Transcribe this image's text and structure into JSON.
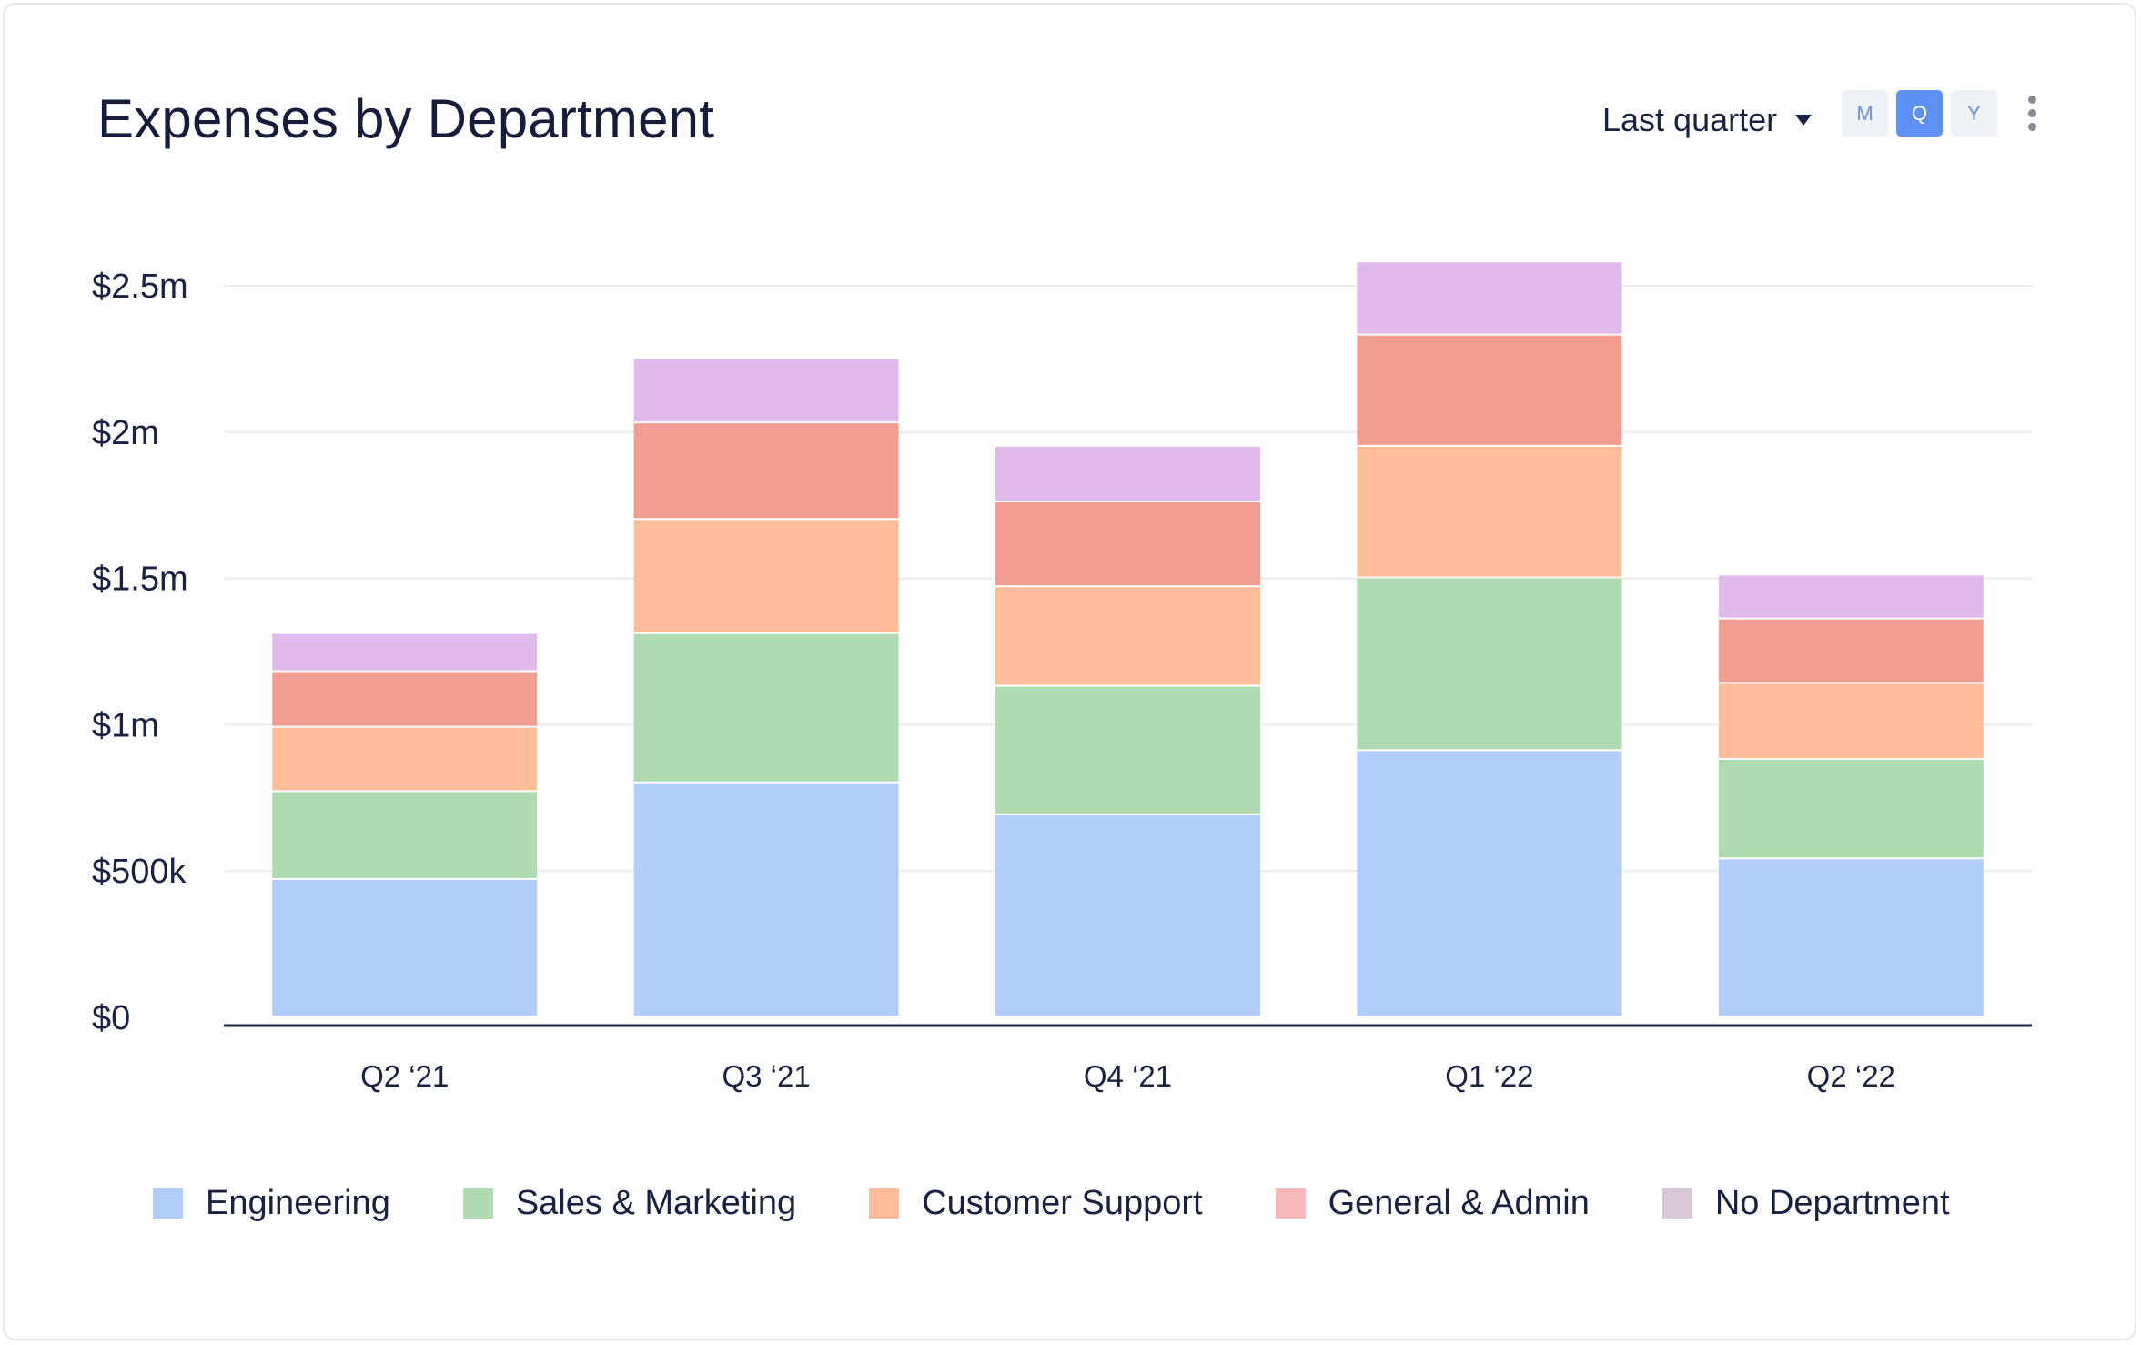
{
  "header": {
    "title": "Expenses by Department",
    "period_select": {
      "value": "Last quarter",
      "icon": "caret-down-icon"
    },
    "granularity": [
      {
        "id": "month",
        "label": "M",
        "active": false
      },
      {
        "id": "quarter",
        "label": "Q",
        "active": true
      },
      {
        "id": "year",
        "label": "Y",
        "active": false
      }
    ],
    "menu_icon": "more-vertical-icon"
  },
  "chart_data": {
    "type": "bar",
    "stacked": true,
    "title": "Expenses by Department",
    "categories": [
      "Q2 ‘21",
      "Q3 ‘21",
      "Q4 ‘21",
      "Q1 ‘22",
      "Q2 ‘22"
    ],
    "y_ticks": [
      "$0",
      "$500k",
      "$1m",
      "$1.5m",
      "$2m",
      "$2.5m"
    ],
    "ylim": [
      0,
      2500000
    ],
    "grid": true,
    "legend_position": "bottom",
    "series": [
      {
        "name": "Engineering",
        "color": "#b3cdfb",
        "legend_color": "#b3cdfb",
        "values": [
          470000,
          800000,
          690000,
          910000,
          540000
        ]
      },
      {
        "name": "Sales & Marketing",
        "color": "#b0dbb0",
        "legend_color": "#b0dbb0",
        "values": [
          300000,
          510000,
          440000,
          590000,
          340000
        ]
      },
      {
        "name": "Customer Support",
        "color": "#fdbd9a",
        "legend_color": "#fdbd9a",
        "values": [
          220000,
          390000,
          340000,
          450000,
          260000
        ]
      },
      {
        "name": "General & Admin",
        "color": "#f29d92",
        "legend_color": "#f8b8bc",
        "values": [
          190000,
          330000,
          290000,
          380000,
          220000
        ]
      },
      {
        "name": "No Department",
        "color": "#dfbaeb",
        "legend_color": "#d9c6d6",
        "values": [
          130000,
          220000,
          190000,
          250000,
          150000
        ]
      }
    ]
  }
}
